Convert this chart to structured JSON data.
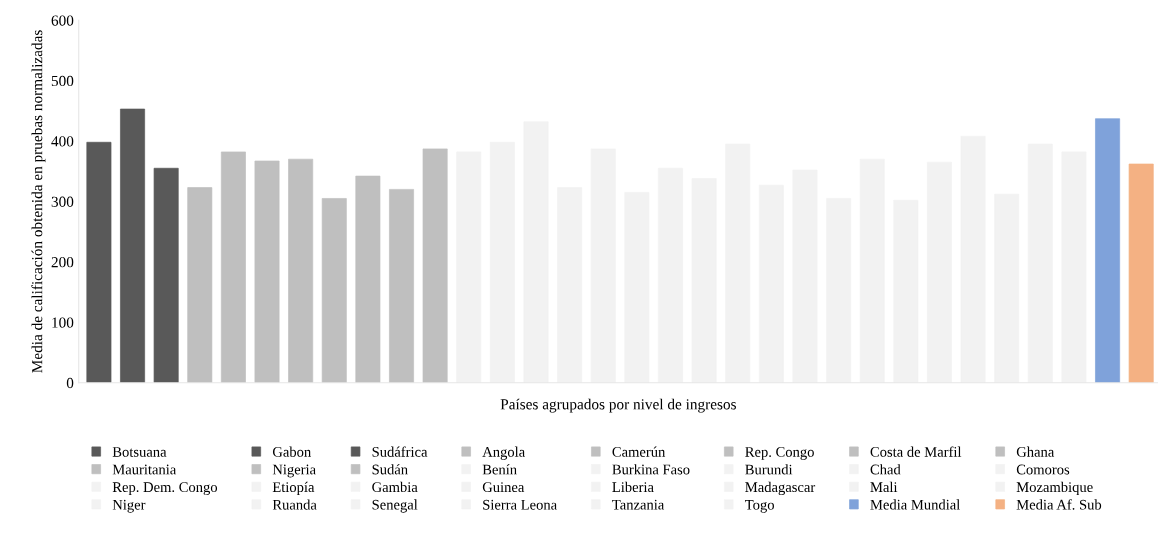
{
  "chart_data": {
    "type": "bar",
    "xlabel": "Países agrupados por nivel de ingresos",
    "ylabel": "Media de calificación obtenida en pruebas normalizadas",
    "categories": [
      null,
      null,
      null,
      null,
      null,
      null,
      null,
      null,
      null,
      null,
      null,
      null,
      null,
      null,
      null,
      null,
      null,
      null,
      null,
      null,
      null,
      null,
      null,
      null,
      null,
      null,
      null,
      null,
      null,
      null,
      null,
      null
    ],
    "ylim": [
      0,
      600
    ],
    "yticks": [
      0,
      100,
      200,
      300,
      400,
      500,
      600
    ],
    "grid": false,
    "legend": "bottom",
    "series": [
      {
        "name": "Botsuana",
        "color": "#595959",
        "values": [
          398,
          null,
          null,
          null,
          null,
          null,
          null,
          null,
          null,
          null,
          null,
          null,
          null,
          null,
          null,
          null,
          null,
          null,
          null,
          null,
          null,
          null,
          null,
          null,
          null,
          null,
          null,
          null,
          null,
          null,
          null,
          null
        ]
      },
      {
        "name": "Gabon",
        "color": "#595959",
        "values": [
          null,
          453,
          null,
          null,
          null,
          null,
          null,
          null,
          null,
          null,
          null,
          null,
          null,
          null,
          null,
          null,
          null,
          null,
          null,
          null,
          null,
          null,
          null,
          null,
          null,
          null,
          null,
          null,
          null,
          null,
          null,
          null
        ]
      },
      {
        "name": "Sudáfrica",
        "color": "#595959",
        "values": [
          null,
          null,
          355,
          null,
          null,
          null,
          null,
          null,
          null,
          null,
          null,
          null,
          null,
          null,
          null,
          null,
          null,
          null,
          null,
          null,
          null,
          null,
          null,
          null,
          null,
          null,
          null,
          null,
          null,
          null,
          null,
          null
        ]
      },
      {
        "name": "Angola",
        "color": "#bfbfbf",
        "values": [
          null,
          null,
          null,
          323,
          null,
          null,
          null,
          null,
          null,
          null,
          null,
          null,
          null,
          null,
          null,
          null,
          null,
          null,
          null,
          null,
          null,
          null,
          null,
          null,
          null,
          null,
          null,
          null,
          null,
          null,
          null,
          null
        ]
      },
      {
        "name": "Camerún",
        "color": "#bfbfbf",
        "values": [
          null,
          null,
          null,
          null,
          382,
          null,
          null,
          null,
          null,
          null,
          null,
          null,
          null,
          null,
          null,
          null,
          null,
          null,
          null,
          null,
          null,
          null,
          null,
          null,
          null,
          null,
          null,
          null,
          null,
          null,
          null,
          null
        ]
      },
      {
        "name": "Rep. Congo",
        "color": "#bfbfbf",
        "values": [
          null,
          null,
          null,
          null,
          null,
          367,
          null,
          null,
          null,
          null,
          null,
          null,
          null,
          null,
          null,
          null,
          null,
          null,
          null,
          null,
          null,
          null,
          null,
          null,
          null,
          null,
          null,
          null,
          null,
          null,
          null,
          null
        ]
      },
      {
        "name": "Costa de Marfil",
        "color": "#bfbfbf",
        "values": [
          null,
          null,
          null,
          null,
          null,
          null,
          370,
          null,
          null,
          null,
          null,
          null,
          null,
          null,
          null,
          null,
          null,
          null,
          null,
          null,
          null,
          null,
          null,
          null,
          null,
          null,
          null,
          null,
          null,
          null,
          null,
          null
        ]
      },
      {
        "name": "Ghana",
        "color": "#bfbfbf",
        "values": [
          null,
          null,
          null,
          null,
          null,
          null,
          null,
          305,
          null,
          null,
          null,
          null,
          null,
          null,
          null,
          null,
          null,
          null,
          null,
          null,
          null,
          null,
          null,
          null,
          null,
          null,
          null,
          null,
          null,
          null,
          null,
          null
        ]
      },
      {
        "name": "Mauritania",
        "color": "#bfbfbf",
        "values": [
          null,
          null,
          null,
          null,
          null,
          null,
          null,
          null,
          342,
          null,
          null,
          null,
          null,
          null,
          null,
          null,
          null,
          null,
          null,
          null,
          null,
          null,
          null,
          null,
          null,
          null,
          null,
          null,
          null,
          null,
          null,
          null
        ]
      },
      {
        "name": "Nigeria",
        "color": "#bfbfbf",
        "values": [
          null,
          null,
          null,
          null,
          null,
          null,
          null,
          null,
          null,
          320,
          null,
          null,
          null,
          null,
          null,
          null,
          null,
          null,
          null,
          null,
          null,
          null,
          null,
          null,
          null,
          null,
          null,
          null,
          null,
          null,
          null,
          null
        ]
      },
      {
        "name": "Sudán",
        "color": "#bfbfbf",
        "values": [
          null,
          null,
          null,
          null,
          null,
          null,
          null,
          null,
          null,
          null,
          387,
          null,
          null,
          null,
          null,
          null,
          null,
          null,
          null,
          null,
          null,
          null,
          null,
          null,
          null,
          null,
          null,
          null,
          null,
          null,
          null,
          null
        ]
      },
      {
        "name": "Benín",
        "color": "#f2f2f2",
        "values": [
          null,
          null,
          null,
          null,
          null,
          null,
          null,
          null,
          null,
          null,
          null,
          382,
          null,
          null,
          null,
          null,
          null,
          null,
          null,
          null,
          null,
          null,
          null,
          null,
          null,
          null,
          null,
          null,
          null,
          null,
          null,
          null
        ]
      },
      {
        "name": "Burkina Faso",
        "color": "#f2f2f2",
        "values": [
          null,
          null,
          null,
          null,
          null,
          null,
          null,
          null,
          null,
          null,
          null,
          null,
          398,
          null,
          null,
          null,
          null,
          null,
          null,
          null,
          null,
          null,
          null,
          null,
          null,
          null,
          null,
          null,
          null,
          null,
          null,
          null
        ]
      },
      {
        "name": "Burundi",
        "color": "#f2f2f2",
        "values": [
          null,
          null,
          null,
          null,
          null,
          null,
          null,
          null,
          null,
          null,
          null,
          null,
          null,
          432,
          null,
          null,
          null,
          null,
          null,
          null,
          null,
          null,
          null,
          null,
          null,
          null,
          null,
          null,
          null,
          null,
          null,
          null
        ]
      },
      {
        "name": "Chad",
        "color": "#f2f2f2",
        "values": [
          null,
          null,
          null,
          null,
          null,
          null,
          null,
          null,
          null,
          null,
          null,
          null,
          null,
          null,
          323,
          null,
          null,
          null,
          null,
          null,
          null,
          null,
          null,
          null,
          null,
          null,
          null,
          null,
          null,
          null,
          null,
          null
        ]
      },
      {
        "name": "Comoros",
        "color": "#f2f2f2",
        "values": [
          null,
          null,
          null,
          null,
          null,
          null,
          null,
          null,
          null,
          null,
          null,
          null,
          null,
          null,
          null,
          387,
          null,
          null,
          null,
          null,
          null,
          null,
          null,
          null,
          null,
          null,
          null,
          null,
          null,
          null,
          null,
          null
        ]
      },
      {
        "name": "Rep. Dem. Congo",
        "color": "#f2f2f2",
        "values": [
          null,
          null,
          null,
          null,
          null,
          null,
          null,
          null,
          null,
          null,
          null,
          null,
          null,
          null,
          null,
          null,
          315,
          null,
          null,
          null,
          null,
          null,
          null,
          null,
          null,
          null,
          null,
          null,
          null,
          null,
          null,
          null
        ]
      },
      {
        "name": "Etiopía",
        "color": "#f2f2f2",
        "values": [
          null,
          null,
          null,
          null,
          null,
          null,
          null,
          null,
          null,
          null,
          null,
          null,
          null,
          null,
          null,
          null,
          null,
          355,
          null,
          null,
          null,
          null,
          null,
          null,
          null,
          null,
          null,
          null,
          null,
          null,
          null,
          null
        ]
      },
      {
        "name": "Gambia",
        "color": "#f2f2f2",
        "values": [
          null,
          null,
          null,
          null,
          null,
          null,
          null,
          null,
          null,
          null,
          null,
          null,
          null,
          null,
          null,
          null,
          null,
          null,
          338,
          null,
          null,
          null,
          null,
          null,
          null,
          null,
          null,
          null,
          null,
          null,
          null,
          null
        ]
      },
      {
        "name": "Guinea",
        "color": "#f2f2f2",
        "values": [
          null,
          null,
          null,
          null,
          null,
          null,
          null,
          null,
          null,
          null,
          null,
          null,
          null,
          null,
          null,
          null,
          null,
          null,
          null,
          395,
          null,
          null,
          null,
          null,
          null,
          null,
          null,
          null,
          null,
          null,
          null,
          null
        ]
      },
      {
        "name": "Liberia",
        "color": "#f2f2f2",
        "values": [
          null,
          null,
          null,
          null,
          null,
          null,
          null,
          null,
          null,
          null,
          null,
          null,
          null,
          null,
          null,
          null,
          null,
          null,
          null,
          null,
          327,
          null,
          null,
          null,
          null,
          null,
          null,
          null,
          null,
          null,
          null,
          null
        ]
      },
      {
        "name": "Madagascar",
        "color": "#f2f2f2",
        "values": [
          null,
          null,
          null,
          null,
          null,
          null,
          null,
          null,
          null,
          null,
          null,
          null,
          null,
          null,
          null,
          null,
          null,
          null,
          null,
          null,
          null,
          352,
          null,
          null,
          null,
          null,
          null,
          null,
          null,
          null,
          null,
          null
        ]
      },
      {
        "name": "Mali",
        "color": "#f2f2f2",
        "values": [
          null,
          null,
          null,
          null,
          null,
          null,
          null,
          null,
          null,
          null,
          null,
          null,
          null,
          null,
          null,
          null,
          null,
          null,
          null,
          null,
          null,
          null,
          305,
          null,
          null,
          null,
          null,
          null,
          null,
          null,
          null,
          null
        ]
      },
      {
        "name": "Mozambique",
        "color": "#f2f2f2",
        "values": [
          null,
          null,
          null,
          null,
          null,
          null,
          null,
          null,
          null,
          null,
          null,
          null,
          null,
          null,
          null,
          null,
          null,
          null,
          null,
          null,
          null,
          null,
          null,
          370,
          null,
          null,
          null,
          null,
          null,
          null,
          null,
          null
        ]
      },
      {
        "name": "Niger",
        "color": "#f2f2f2",
        "values": [
          null,
          null,
          null,
          null,
          null,
          null,
          null,
          null,
          null,
          null,
          null,
          null,
          null,
          null,
          null,
          null,
          null,
          null,
          null,
          null,
          null,
          null,
          null,
          null,
          302,
          null,
          null,
          null,
          null,
          null,
          null,
          null
        ]
      },
      {
        "name": "Ruanda",
        "color": "#f2f2f2",
        "values": [
          null,
          null,
          null,
          null,
          null,
          null,
          null,
          null,
          null,
          null,
          null,
          null,
          null,
          null,
          null,
          null,
          null,
          null,
          null,
          null,
          null,
          null,
          null,
          null,
          null,
          365,
          null,
          null,
          null,
          null,
          null,
          null
        ]
      },
      {
        "name": "Senegal",
        "color": "#f2f2f2",
        "values": [
          null,
          null,
          null,
          null,
          null,
          null,
          null,
          null,
          null,
          null,
          null,
          null,
          null,
          null,
          null,
          null,
          null,
          null,
          null,
          null,
          null,
          null,
          null,
          null,
          null,
          null,
          408,
          null,
          null,
          null,
          null,
          null
        ]
      },
      {
        "name": "Sierra Leona",
        "color": "#f2f2f2",
        "values": [
          null,
          null,
          null,
          null,
          null,
          null,
          null,
          null,
          null,
          null,
          null,
          null,
          null,
          null,
          null,
          null,
          null,
          null,
          null,
          null,
          null,
          null,
          null,
          null,
          null,
          null,
          null,
          312,
          null,
          null,
          null,
          null
        ]
      },
      {
        "name": "Tanzania",
        "color": "#f2f2f2",
        "values": [
          null,
          null,
          null,
          null,
          null,
          null,
          null,
          null,
          null,
          null,
          null,
          null,
          null,
          null,
          null,
          null,
          null,
          null,
          null,
          null,
          null,
          null,
          null,
          null,
          null,
          null,
          null,
          null,
          395,
          null,
          null,
          null
        ]
      },
      {
        "name": "Togo",
        "color": "#f2f2f2",
        "values": [
          null,
          null,
          null,
          null,
          null,
          null,
          null,
          null,
          null,
          null,
          null,
          null,
          null,
          null,
          null,
          null,
          null,
          null,
          null,
          null,
          null,
          null,
          null,
          null,
          null,
          null,
          null,
          null,
          null,
          382,
          null,
          null
        ]
      },
      {
        "name": "Media Mundial",
        "color": "#7fa2da",
        "values": [
          null,
          null,
          null,
          null,
          null,
          null,
          null,
          null,
          null,
          null,
          null,
          null,
          null,
          null,
          null,
          null,
          null,
          null,
          null,
          null,
          null,
          null,
          null,
          null,
          null,
          null,
          null,
          null,
          null,
          null,
          437,
          null
        ]
      },
      {
        "name": "Media Af. Sub",
        "color": "#f4b183",
        "values": [
          null,
          null,
          null,
          null,
          null,
          null,
          null,
          null,
          null,
          null,
          null,
          null,
          null,
          null,
          null,
          null,
          null,
          null,
          null,
          null,
          null,
          null,
          null,
          null,
          null,
          null,
          null,
          null,
          null,
          null,
          null,
          362
        ]
      }
    ]
  }
}
